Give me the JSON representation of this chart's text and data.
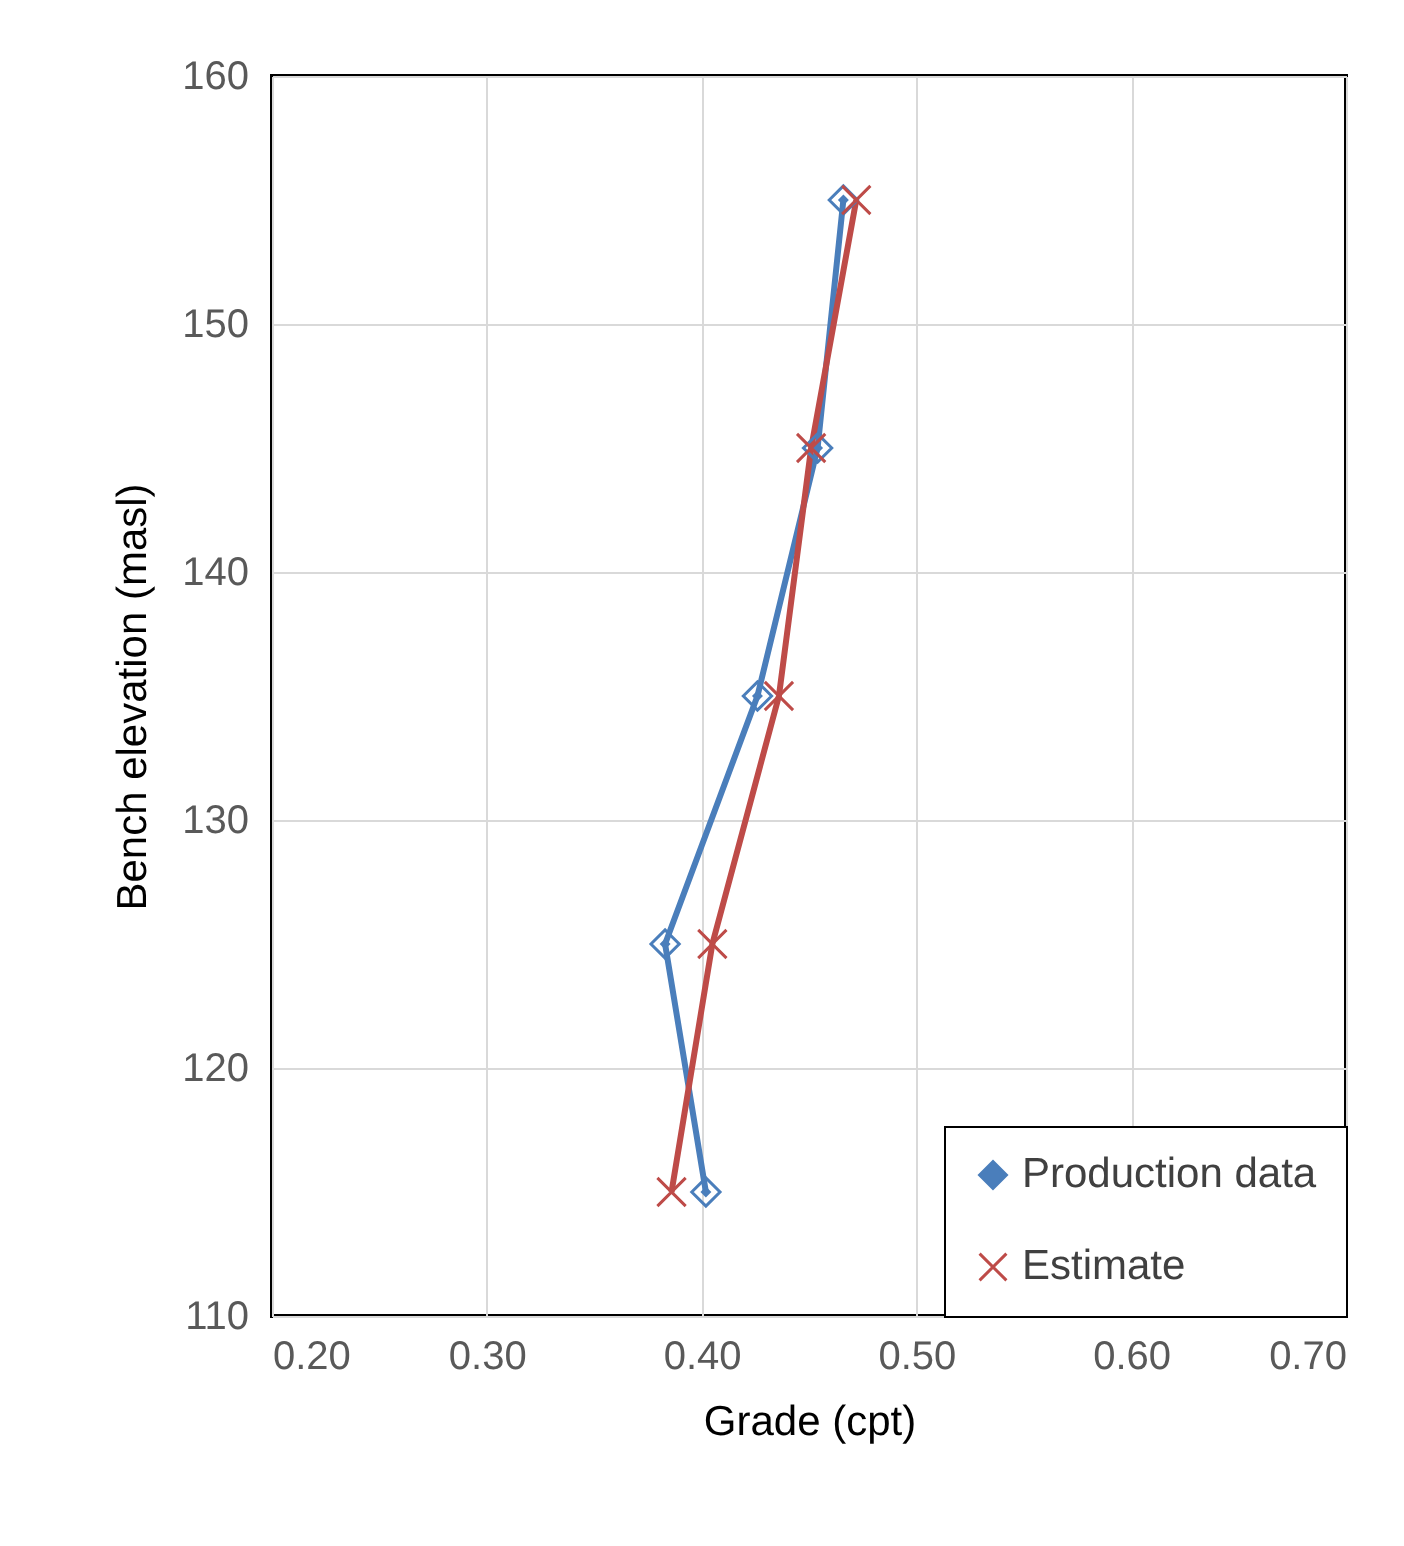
{
  "chart_data": {
    "type": "line",
    "xlabel": "Grade (cpt)",
    "ylabel": "Bench elevation (masl)",
    "xlim": [
      0.2,
      0.7
    ],
    "xticks": [
      {
        "value": 0.2,
        "label": "0.20"
      },
      {
        "value": 0.3,
        "label": "0.30"
      },
      {
        "value": 0.4,
        "label": "0.40"
      },
      {
        "value": 0.5,
        "label": "0.50"
      },
      {
        "value": 0.6,
        "label": "0.60"
      },
      {
        "value": 0.7,
        "label": "0.70"
      }
    ],
    "ylim": [
      110,
      160
    ],
    "yticks": [
      110,
      120,
      130,
      140,
      150,
      160
    ],
    "grid": true,
    "legend": "bottom right",
    "series": [
      {
        "name": "Production data",
        "color": "#4a7ebb",
        "marker": "diamond",
        "x": [
          0.466,
          0.454,
          0.426,
          0.383,
          0.402
        ],
        "values": [
          155,
          145,
          135,
          125,
          115
        ]
      },
      {
        "name": "Estimate",
        "color": "#be4b48",
        "marker": "cross",
        "x": [
          0.472,
          0.451,
          0.436,
          0.405,
          0.386
        ],
        "values": [
          155,
          145,
          135,
          125,
          115
        ]
      }
    ]
  }
}
